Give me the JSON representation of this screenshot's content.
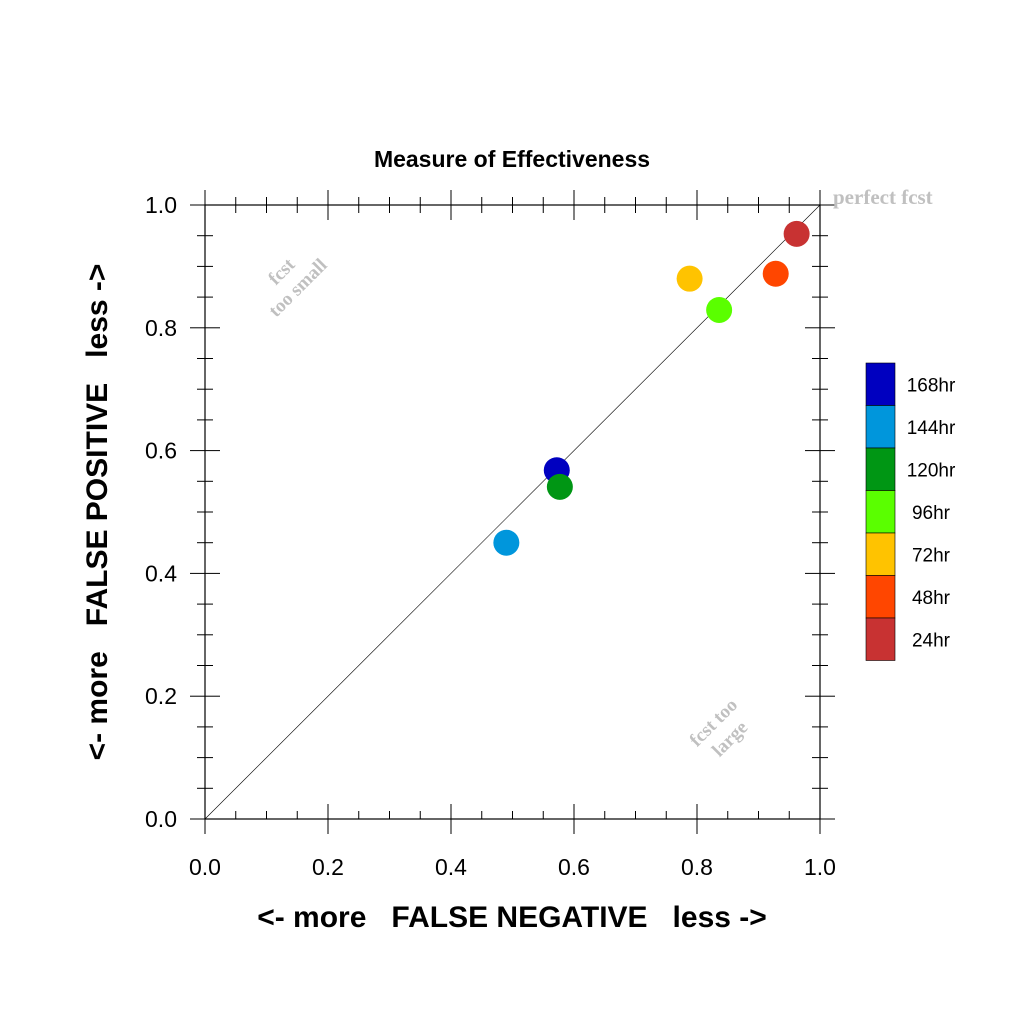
{
  "chart_data": {
    "type": "scatter",
    "title": "Measure of Effectiveness",
    "xlabel": "<- more   FALSE NEGATIVE   less ->",
    "ylabel": "<- more   FALSE POSITIVE   less ->",
    "xlim": [
      0,
      1
    ],
    "ylim": [
      0,
      1
    ],
    "x_ticks": [
      "0.0",
      "0.2",
      "0.4",
      "0.6",
      "0.8",
      "1.0"
    ],
    "y_ticks": [
      "0.0",
      "0.2",
      "0.4",
      "0.6",
      "0.8",
      "1.0"
    ],
    "grid": false,
    "reference_line": "diagonal y = x",
    "annotations": {
      "perfect": "perfect fcst",
      "too_small_1": "fcst",
      "too_small_2": "too small",
      "too_large_1": "fcst too",
      "too_large_2": "large"
    },
    "legend_position": "right",
    "series": [
      {
        "name": "168hr",
        "color": "#0000c0",
        "x": 0.572,
        "y": 0.568
      },
      {
        "name": "144hr",
        "color": "#0096dc",
        "x": 0.49,
        "y": 0.45
      },
      {
        "name": "120hr",
        "color": "#009614",
        "x": 0.577,
        "y": 0.541
      },
      {
        "name": "96hr",
        "color": "#5aff00",
        "x": 0.836,
        "y": 0.829
      },
      {
        "name": "72hr",
        "color": "#ffc300",
        "x": 0.788,
        "y": 0.88
      },
      {
        "name": "48hr",
        "color": "#ff4600",
        "x": 0.928,
        "y": 0.888
      },
      {
        "name": "24hr",
        "color": "#c83232",
        "x": 0.962,
        "y": 0.953
      }
    ]
  }
}
